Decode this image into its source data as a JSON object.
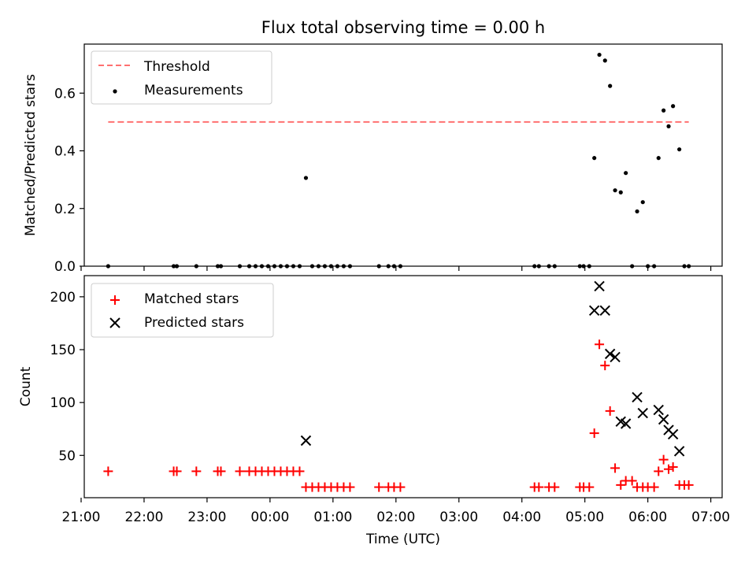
{
  "chart_data": [
    {
      "type": "scatter",
      "title": "Flux total observing time = 0.00 h",
      "xlabel": "",
      "ylabel": "Matched/Predicted stars",
      "xlim": [
        -2.95,
        7.18
      ],
      "ylim": [
        0,
        0.77
      ],
      "yticks": [
        0.0,
        0.2,
        0.4,
        0.6
      ],
      "ytick_labels": [
        "0.0",
        "0.2",
        "0.4",
        "0.6"
      ],
      "legend": "top-left",
      "threshold": {
        "name": "Threshold",
        "y": 0.5,
        "x": [
          -2.57,
          6.65
        ],
        "color": "#ff7070"
      },
      "series": [
        {
          "name": "Measurements",
          "color": "#000000",
          "points": [
            [
              -2.57,
              0
            ],
            [
              -1.53,
              0
            ],
            [
              -1.48,
              0
            ],
            [
              -1.17,
              0
            ],
            [
              -0.83,
              0
            ],
            [
              -0.78,
              0
            ],
            [
              -0.48,
              0
            ],
            [
              -0.33,
              0
            ],
            [
              -0.23,
              0
            ],
            [
              -0.13,
              0
            ],
            [
              -0.03,
              0
            ],
            [
              0.07,
              0
            ],
            [
              0.17,
              0
            ],
            [
              0.27,
              0
            ],
            [
              0.37,
              0
            ],
            [
              0.47,
              0
            ],
            [
              0.57,
              0.306
            ],
            [
              0.67,
              0
            ],
            [
              0.77,
              0
            ],
            [
              0.87,
              0
            ],
            [
              0.97,
              0
            ],
            [
              1.07,
              0
            ],
            [
              1.17,
              0
            ],
            [
              1.27,
              0
            ],
            [
              1.73,
              0
            ],
            [
              1.88,
              0
            ],
            [
              1.97,
              0
            ],
            [
              2.07,
              0
            ],
            [
              4.2,
              0
            ],
            [
              4.27,
              0
            ],
            [
              4.43,
              0
            ],
            [
              4.52,
              0
            ],
            [
              4.92,
              0
            ],
            [
              4.98,
              0
            ],
            [
              5.07,
              0
            ],
            [
              5.15,
              0.375
            ],
            [
              5.23,
              0.733
            ],
            [
              5.32,
              0.713
            ],
            [
              5.4,
              0.625
            ],
            [
              5.48,
              0.263
            ],
            [
              5.57,
              0.256
            ],
            [
              5.65,
              0.323
            ],
            [
              5.75,
              0
            ],
            [
              5.83,
              0.19
            ],
            [
              5.92,
              0.222
            ],
            [
              6.0,
              0
            ],
            [
              6.1,
              0
            ],
            [
              6.17,
              0.375
            ],
            [
              6.25,
              0.54
            ],
            [
              6.33,
              0.485
            ],
            [
              6.4,
              0.555
            ],
            [
              6.5,
              0.405
            ],
            [
              6.58,
              0
            ],
            [
              6.65,
              0
            ]
          ]
        }
      ]
    },
    {
      "type": "scatter",
      "title": "",
      "xlabel": "Time (UTC)",
      "ylabel": "Count",
      "xlim": [
        -2.95,
        7.18
      ],
      "ylim": [
        10,
        220
      ],
      "xticks": [
        -3,
        -2,
        -1,
        0,
        1,
        2,
        3,
        4,
        5,
        6,
        7
      ],
      "xtick_labels": [
        "21:00",
        "22:00",
        "23:00",
        "00:00",
        "01:00",
        "02:00",
        "03:00",
        "04:00",
        "05:00",
        "06:00",
        "07:00"
      ],
      "yticks": [
        50,
        100,
        150,
        200
      ],
      "ytick_labels": [
        "50",
        "100",
        "150",
        "200"
      ],
      "legend": "top-left",
      "series": [
        {
          "name": "Matched stars",
          "marker": "+",
          "color": "#ff0000",
          "points": [
            [
              -2.57,
              35
            ],
            [
              -1.53,
              35
            ],
            [
              -1.48,
              35
            ],
            [
              -1.17,
              35
            ],
            [
              -0.83,
              35
            ],
            [
              -0.78,
              35
            ],
            [
              -0.48,
              35
            ],
            [
              -0.33,
              35
            ],
            [
              -0.23,
              35
            ],
            [
              -0.13,
              35
            ],
            [
              -0.03,
              35
            ],
            [
              0.07,
              35
            ],
            [
              0.17,
              35
            ],
            [
              0.27,
              35
            ],
            [
              0.37,
              35
            ],
            [
              0.47,
              35
            ],
            [
              0.57,
              20
            ],
            [
              0.67,
              20
            ],
            [
              0.77,
              20
            ],
            [
              0.87,
              20
            ],
            [
              0.97,
              20
            ],
            [
              1.07,
              20
            ],
            [
              1.17,
              20
            ],
            [
              1.27,
              20
            ],
            [
              1.73,
              20
            ],
            [
              1.88,
              20
            ],
            [
              1.97,
              20
            ],
            [
              2.07,
              20
            ],
            [
              4.2,
              20
            ],
            [
              4.27,
              20
            ],
            [
              4.43,
              20
            ],
            [
              4.52,
              20
            ],
            [
              4.92,
              20
            ],
            [
              4.98,
              20
            ],
            [
              5.07,
              20
            ],
            [
              5.15,
              71
            ],
            [
              5.23,
              155
            ],
            [
              5.32,
              135
            ],
            [
              5.4,
              92
            ],
            [
              5.48,
              38
            ],
            [
              5.57,
              22
            ],
            [
              5.65,
              26
            ],
            [
              5.75,
              26
            ],
            [
              5.83,
              20
            ],
            [
              5.92,
              20
            ],
            [
              6.0,
              20
            ],
            [
              6.1,
              20
            ],
            [
              6.17,
              35
            ],
            [
              6.25,
              46
            ],
            [
              6.33,
              37
            ],
            [
              6.4,
              39
            ],
            [
              6.5,
              22
            ],
            [
              6.58,
              22
            ],
            [
              6.65,
              22
            ]
          ]
        },
        {
          "name": "Predicted stars",
          "marker": "x",
          "color": "#000000",
          "points": [
            [
              0.57,
              64
            ],
            [
              5.15,
              187
            ],
            [
              5.23,
              210
            ],
            [
              5.32,
              187
            ],
            [
              5.4,
              146
            ],
            [
              5.48,
              143
            ],
            [
              5.57,
              82
            ],
            [
              5.65,
              80
            ],
            [
              5.83,
              105
            ],
            [
              5.92,
              90
            ],
            [
              6.17,
              93
            ],
            [
              6.25,
              84
            ],
            [
              6.33,
              74
            ],
            [
              6.4,
              70
            ],
            [
              6.5,
              54
            ]
          ]
        }
      ]
    }
  ]
}
